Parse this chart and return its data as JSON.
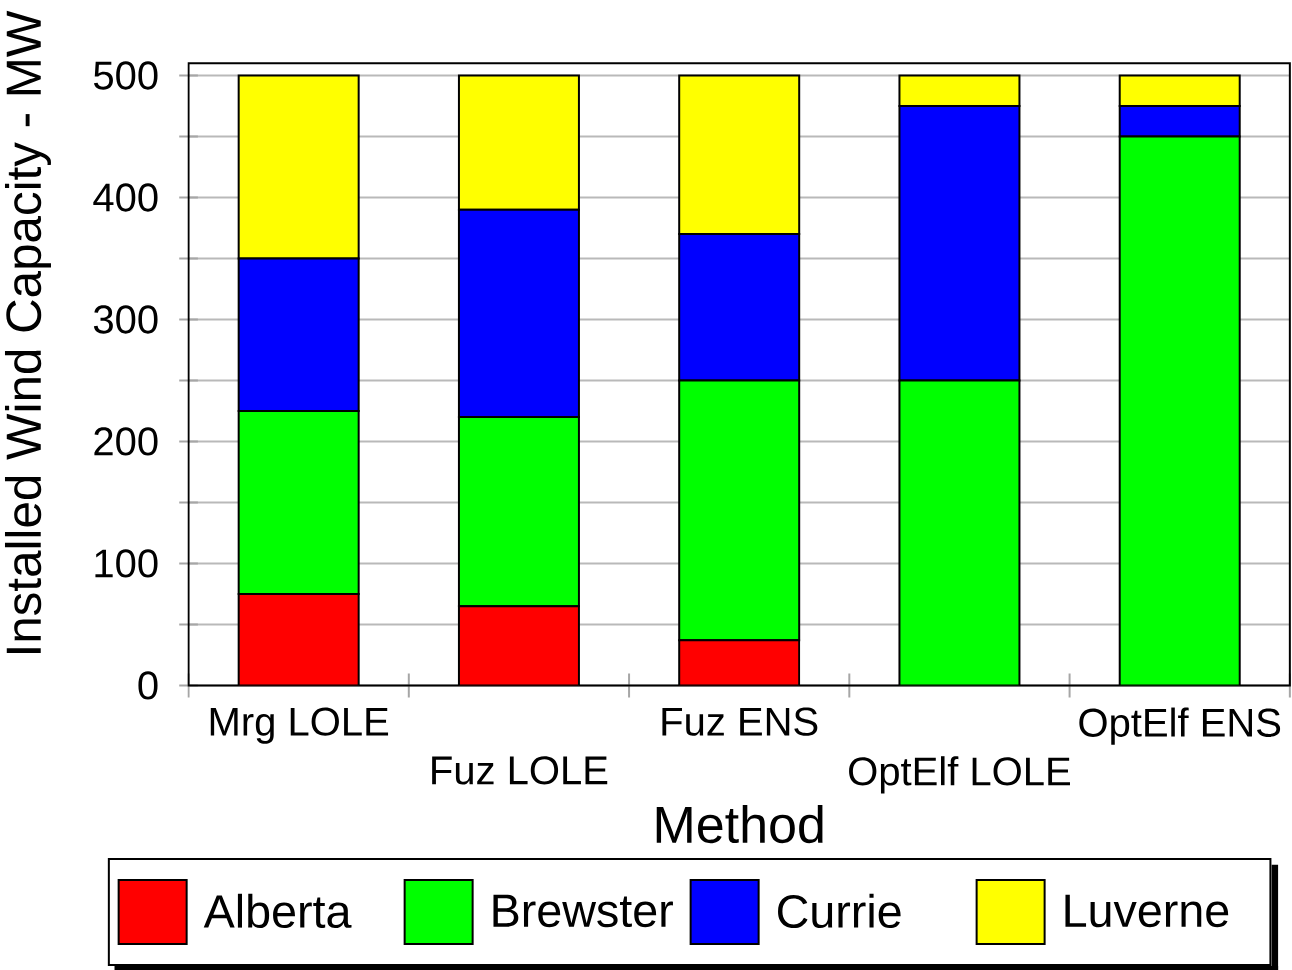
{
  "chart_data": {
    "type": "bar",
    "stacked": true,
    "xlabel": "Method",
    "ylabel": "Installed Wind Capacity - MW",
    "categories": [
      "Mrg LOLE",
      "Fuz LOLE",
      "Fuz ENS",
      "OptElf LOLE",
      "OptElf ENS"
    ],
    "series": [
      {
        "name": "Alberta",
        "color": "#ff0000",
        "values": [
          75,
          65,
          37,
          0,
          0
        ]
      },
      {
        "name": "Brewster",
        "color": "#00ff00",
        "values": [
          150,
          155,
          213,
          250,
          450
        ]
      },
      {
        "name": "Currie",
        "color": "#0000ff",
        "values": [
          125,
          170,
          120,
          225,
          25
        ]
      },
      {
        "name": "Luverne",
        "color": "#ffff00",
        "values": [
          150,
          110,
          130,
          25,
          25
        ]
      }
    ],
    "ylim": [
      0,
      510
    ],
    "yticks": [
      0,
      {
        "value": 50,
        "label": null
      },
      100,
      {
        "value": 150,
        "label": null
      },
      200,
      {
        "value": 250,
        "label": null
      },
      300,
      {
        "value": 350,
        "label": null
      },
      400,
      {
        "value": 450,
        "label": null
      },
      500
    ],
    "grid": "y",
    "legend": "bottom"
  }
}
